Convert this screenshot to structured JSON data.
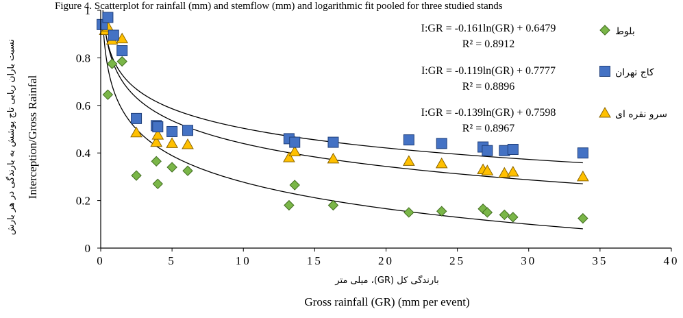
{
  "chart_data": {
    "type": "scatter",
    "title": "Figure 4. Scatterplot for rainfall (mm) and stemflow (mm) and logarithmic fit pooled for three studied stands",
    "xlabel_fa": "بارندگی کل (GR)، میلی متر",
    "xlabel_en": "Gross rainfall (GR)  (mm per event)",
    "ylabel_fa": "نسبت باران ربایی تاج پوشش به بارندگی در هر بارش",
    "ylabel_en": "Interception/Gross Rainfal",
    "xlim": [
      0,
      40
    ],
    "ylim": [
      0,
      1
    ],
    "xticks": [
      0,
      5,
      10,
      15,
      20,
      25,
      30,
      35,
      40
    ],
    "yticks": [
      0,
      0.2,
      0.4,
      0.6,
      0.8,
      1
    ],
    "xtick_labels": [
      "0",
      "5",
      "10",
      "15",
      "20",
      "25",
      "30",
      "35",
      "40"
    ],
    "ytick_labels": [
      "0",
      "0.2",
      "0.4",
      "0.6",
      "0.8",
      "1"
    ],
    "grid": false,
    "legend_position": "right",
    "series": [
      {
        "name": "بلوط",
        "marker": "diamond",
        "color": "#7ab648",
        "edge": "#3f6b1e",
        "equation": "I:GR = -0.161ln(GR) + 0.6479",
        "r2": "R² = 0.8912",
        "fit": {
          "a": -0.161,
          "b": 0.6479
        },
        "x": [
          0.2,
          0.5,
          0.8,
          1.5,
          2.5,
          3.9,
          4.0,
          5.0,
          6.1,
          13.2,
          13.6,
          16.3,
          21.6,
          23.9,
          26.8,
          27.1,
          28.3,
          28.9,
          33.8
        ],
        "y": [
          0.93,
          0.645,
          0.775,
          0.785,
          0.305,
          0.365,
          0.27,
          0.34,
          0.325,
          0.18,
          0.265,
          0.18,
          0.15,
          0.155,
          0.165,
          0.15,
          0.14,
          0.13,
          0.125
        ]
      },
      {
        "name": "کاج تهران",
        "marker": "square",
        "color": "#4472c4",
        "edge": "#1f3f7a",
        "equation": "I:GR = -0.119ln(GR) + 0.7777",
        "r2": "R² = 0.8896",
        "fit": {
          "a": -0.119,
          "b": 0.7777
        },
        "x": [
          0.1,
          0.5,
          0.9,
          1.5,
          2.5,
          3.9,
          4.0,
          5.0,
          6.1,
          13.2,
          13.6,
          16.3,
          21.6,
          23.9,
          26.8,
          27.1,
          28.3,
          28.9,
          33.8
        ],
        "y": [
          0.94,
          0.97,
          0.895,
          0.83,
          0.545,
          0.515,
          0.51,
          0.49,
          0.495,
          0.46,
          0.445,
          0.445,
          0.455,
          0.44,
          0.425,
          0.41,
          0.41,
          0.415,
          0.4
        ]
      },
      {
        "name": "سرو نقره ای",
        "marker": "triangle",
        "color": "#ffc000",
        "edge": "#8a6400",
        "equation": "I:GR = -0.139ln(GR) + 0.7598",
        "r2": "R² = 0.8967",
        "fit": {
          "a": -0.139,
          "b": 0.7598
        },
        "x": [
          0.3,
          0.5,
          0.8,
          1.5,
          2.5,
          3.9,
          4.0,
          5.0,
          6.1,
          13.2,
          13.6,
          16.3,
          21.6,
          23.9,
          26.8,
          27.1,
          28.3,
          28.9,
          33.8
        ],
        "y": [
          0.915,
          0.93,
          0.875,
          0.88,
          0.485,
          0.445,
          0.475,
          0.44,
          0.435,
          0.38,
          0.405,
          0.375,
          0.365,
          0.355,
          0.33,
          0.325,
          0.315,
          0.32,
          0.3
        ]
      }
    ]
  }
}
